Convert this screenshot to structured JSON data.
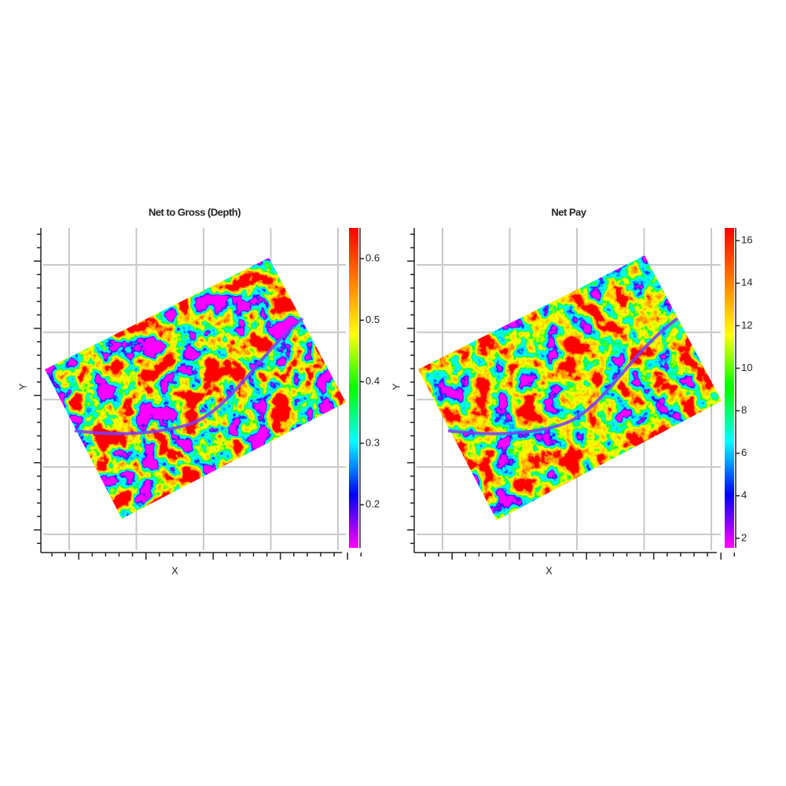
{
  "chart_data": [
    {
      "type": "heatmap",
      "title": "Net to Gross (Depth)",
      "xlabel": "X",
      "ylabel": "Y",
      "colormap": [
        "#ff00ff",
        "#0000ff",
        "#00ffff",
        "#00ff00",
        "#ffff00",
        "#ff8000",
        "#ff0000"
      ],
      "clim": [
        0.13,
        0.65
      ],
      "cticks": [
        0.2,
        0.3,
        0.4,
        0.5,
        0.6
      ]
    },
    {
      "type": "heatmap",
      "title": "Net Pay",
      "xlabel": "X",
      "ylabel": "Y",
      "colormap": [
        "#ff00ff",
        "#0000ff",
        "#00ffff",
        "#00ff00",
        "#ffff00",
        "#ff8000",
        "#ff0000"
      ],
      "clim": [
        1.55,
        16.6
      ],
      "cticks": [
        2,
        4,
        6,
        8,
        10,
        12,
        14,
        16
      ]
    }
  ]
}
